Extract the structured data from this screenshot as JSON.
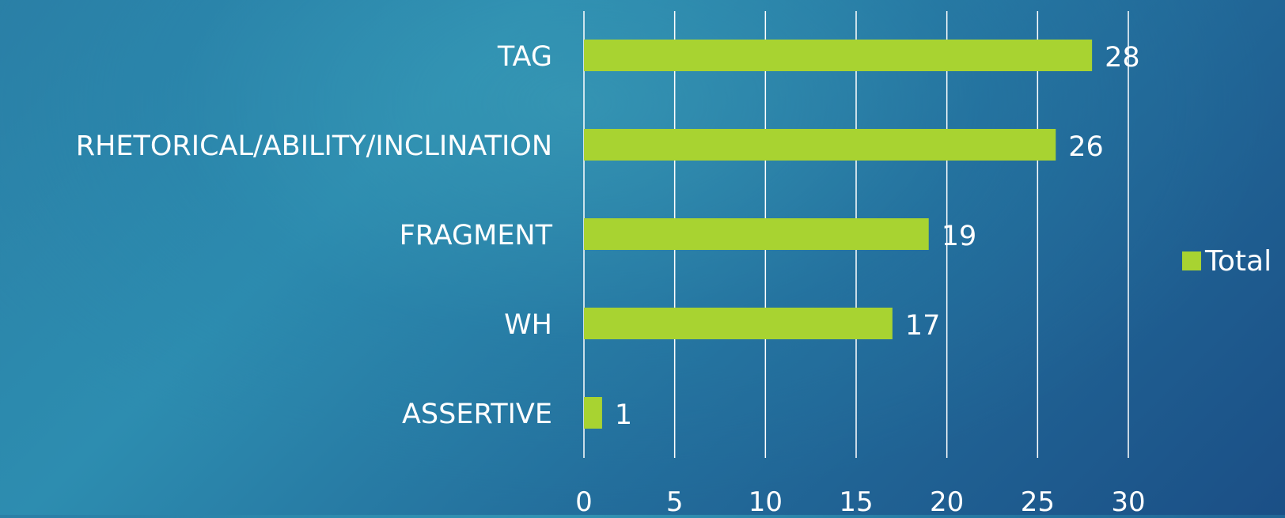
{
  "chart_data": {
    "type": "bar",
    "orientation": "horizontal",
    "categories": [
      "TAG",
      "RHETORICAL/ABILITY/INCLINATION",
      "FRAGMENT",
      "WH",
      "ASSERTIVE"
    ],
    "series": [
      {
        "name": "Total",
        "values": [
          28,
          26,
          19,
          17,
          1
        ],
        "color": "#a8d331"
      }
    ],
    "data_labels": [
      "28",
      "26",
      "19",
      "17",
      "1"
    ],
    "x_ticks": [
      "0",
      "5",
      "10",
      "15",
      "20",
      "25",
      "30"
    ],
    "xlim": [
      0,
      30
    ],
    "grid": true,
    "gridline_color": "#ffffff",
    "legend_position": "right",
    "text_color": "#ffffff"
  }
}
